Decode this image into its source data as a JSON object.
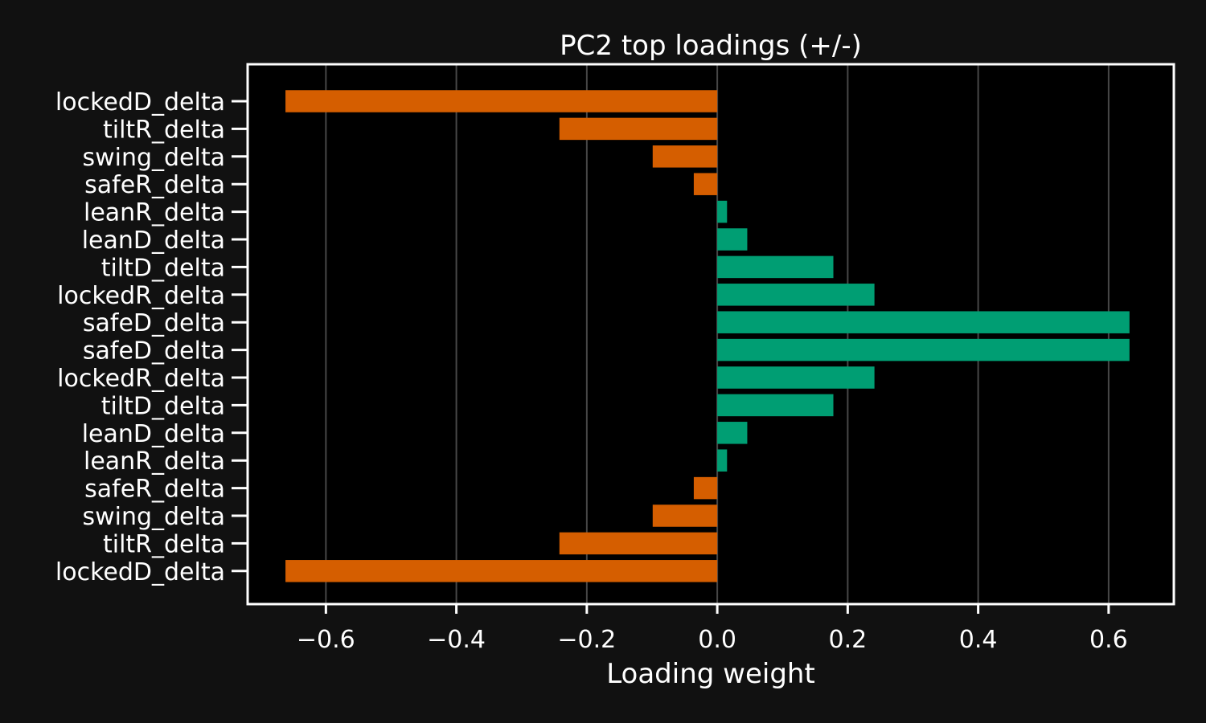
{
  "chart_data": {
    "type": "bar",
    "orientation": "horizontal",
    "title": "PC2 top loadings (+/-)",
    "xlabel": "Loading weight",
    "ylabel": "",
    "xlim": [
      -0.72,
      0.7
    ],
    "xticks": [
      -0.6,
      -0.4,
      -0.2,
      0.0,
      0.2,
      0.4,
      0.6
    ],
    "xtick_labels": [
      "−0.6",
      "−0.4",
      "−0.2",
      "0.0",
      "0.2",
      "0.4",
      "0.6"
    ],
    "grid": "vertical",
    "colors": {
      "negative": "#d55e00",
      "positive": "#009e73",
      "background": "#111111",
      "plot_background": "#000000",
      "foreground": "#ffffff"
    },
    "categories": [
      "lockedD_delta",
      "tiltR_delta",
      "swing_delta",
      "safeR_delta",
      "leanR_delta",
      "leanD_delta",
      "tiltD_delta",
      "lockedR_delta",
      "safeD_delta",
      "safeD_delta",
      "lockedR_delta",
      "tiltD_delta",
      "leanD_delta",
      "leanR_delta",
      "safeR_delta",
      "swing_delta",
      "tiltR_delta",
      "lockedD_delta"
    ],
    "values": [
      -0.662,
      -0.242,
      -0.099,
      -0.036,
      0.015,
      0.046,
      0.178,
      0.241,
      0.632,
      0.632,
      0.241,
      0.178,
      0.046,
      0.015,
      -0.036,
      -0.099,
      -0.242,
      -0.662
    ]
  }
}
